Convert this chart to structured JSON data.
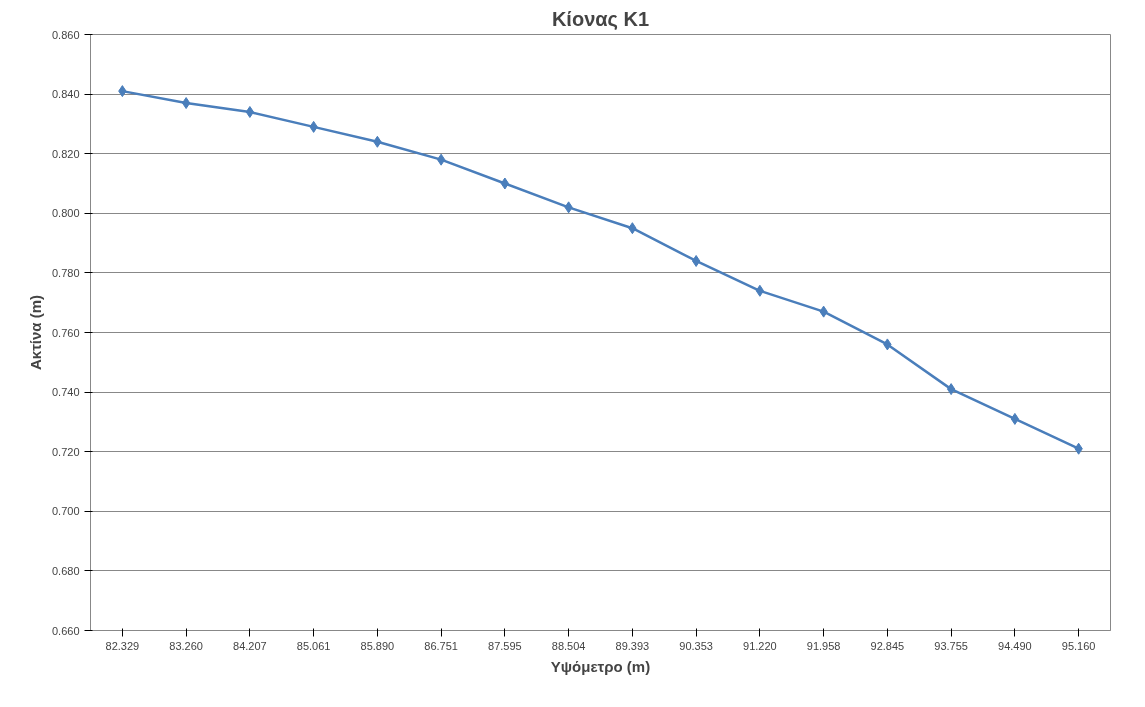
{
  "chart_data": {
    "type": "line",
    "title": "Κίονας Κ1",
    "xlabel": "Υψόμετρο (m)",
    "ylabel": "Ακτίνα (m)",
    "categories": [
      "82.329",
      "83.260",
      "84.207",
      "85.061",
      "85.890",
      "86.751",
      "87.595",
      "88.504",
      "89.393",
      "90.353",
      "91.220",
      "91.958",
      "92.845",
      "93.755",
      "94.490",
      "95.160"
    ],
    "series": [
      {
        "color": "#4a7ebb",
        "values": [
          0.841,
          0.837,
          0.834,
          0.829,
          0.824,
          0.818,
          0.81,
          0.802,
          0.795,
          0.784,
          0.774,
          0.767,
          0.756,
          0.741,
          0.731,
          0.721
        ]
      }
    ],
    "ylim": [
      0.66,
      0.86
    ],
    "yticks": [
      {
        "value": 0.66,
        "label": "0.660"
      },
      {
        "value": 0.68,
        "label": "0.680"
      },
      {
        "value": 0.7,
        "label": "0.700"
      },
      {
        "value": 0.72,
        "label": "0.720"
      },
      {
        "value": 0.74,
        "label": "0.740"
      },
      {
        "value": 0.76,
        "label": "0.760"
      },
      {
        "value": 0.78,
        "label": "0.780"
      },
      {
        "value": 0.8,
        "label": "0.800"
      },
      {
        "value": 0.82,
        "label": "0.820"
      },
      {
        "value": 0.84,
        "label": "0.840"
      },
      {
        "value": 0.86,
        "label": "0.860"
      }
    ],
    "grid": "y",
    "marker": "diamond",
    "line_style": "solid"
  }
}
